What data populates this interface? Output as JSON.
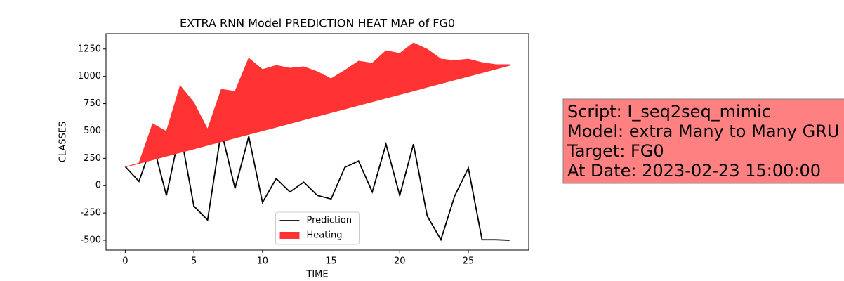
{
  "chart_data": {
    "type": "line",
    "title": "EXTRA RNN Model PREDICTION HEAT MAP of FG0",
    "x_label": "TIME",
    "y_label": "CLASSES",
    "x": [
      0,
      1,
      2,
      3,
      4,
      5,
      6,
      7,
      8,
      9,
      10,
      11,
      12,
      13,
      14,
      15,
      16,
      17,
      18,
      19,
      20,
      21,
      22,
      23,
      24,
      25,
      26,
      27,
      28
    ],
    "series": [
      {
        "name": "Prediction",
        "color": "#000000",
        "values": [
          174,
          39,
          393,
          -90,
          502,
          -187,
          -315,
          502,
          -26,
          450,
          -154,
          64,
          -58,
          32,
          -90,
          -122,
          167,
          225,
          -58,
          380,
          -90,
          380,
          -277,
          -495,
          -96,
          161,
          -495,
          -495,
          -500
        ]
      },
      {
        "name": "Heating",
        "color": "#ff3333",
        "base": [
          170,
          203,
          236,
          270,
          303,
          336,
          369,
          402,
          436,
          469,
          502,
          535,
          569,
          602,
          635,
          668,
          701,
          735,
          768,
          801,
          834,
          867,
          901,
          934,
          967,
          1000,
          1033,
          1067,
          1100
        ],
        "values": [
          170,
          206,
          566,
          495,
          914,
          759,
          515,
          882,
          862,
          1165,
          1062,
          1100,
          1075,
          1088,
          1042,
          978,
          1055,
          1139,
          1120,
          1235,
          1210,
          1306,
          1248,
          1158,
          1145,
          1158,
          1126,
          1107,
          1107
        ]
      }
    ],
    "xlim": [
      -1.4,
      29.4
    ],
    "xticks": [
      0,
      5,
      10,
      15,
      20,
      25
    ],
    "ylim": [
      -590,
      1390
    ],
    "yticks": [
      -500,
      -250,
      0,
      250,
      500,
      750,
      1000,
      1250
    ],
    "legend": "lower center",
    "annotation": [
      "Script: I_seq2seq_mimic",
      "Model: extra Many to Many GRU",
      "Target: FG0",
      "At Date: 2023-02-23 15:00:00"
    ]
  }
}
